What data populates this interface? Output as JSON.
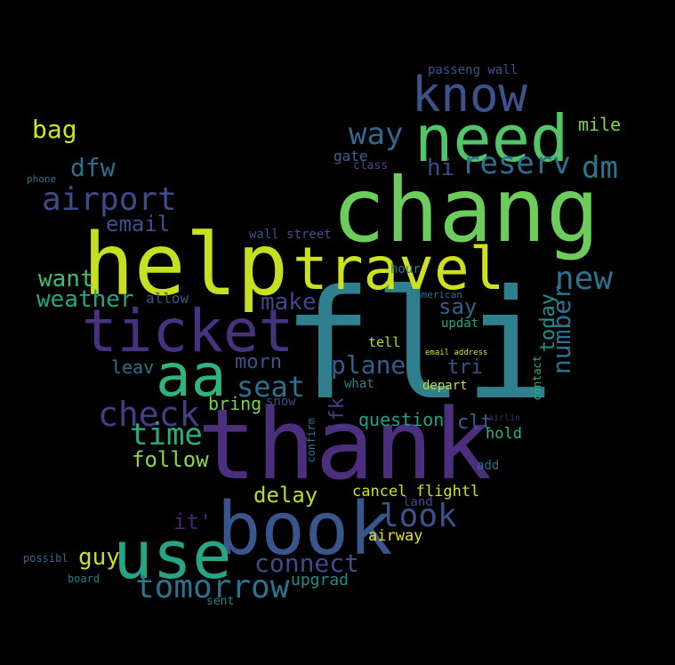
{
  "background_color": "#000000",
  "words": [
    {
      "text": "fli",
      "color": "#2f7f8e"
    },
    {
      "text": "thank",
      "color": "#4b2f7d"
    },
    {
      "text": "chang",
      "color": "#6ccd5a"
    },
    {
      "text": "help",
      "color": "#c6e021"
    },
    {
      "text": "travel",
      "color": "#cde11d"
    },
    {
      "text": "book",
      "color": "#39568c"
    },
    {
      "text": "need",
      "color": "#52c569"
    },
    {
      "text": "ticket",
      "color": "#46327e"
    },
    {
      "text": "use",
      "color": "#25a584"
    },
    {
      "text": "aa",
      "color": "#2fb47c"
    },
    {
      "text": "know",
      "color": "#3b528b"
    },
    {
      "text": "check",
      "color": "#433e85"
    },
    {
      "text": "tomorrow",
      "color": "#2c728e"
    },
    {
      "text": "airport",
      "color": "#3e4a89"
    },
    {
      "text": "time",
      "color": "#29af7f"
    },
    {
      "text": "reserv",
      "color": "#2e6f8e"
    },
    {
      "text": "look",
      "color": "#3b528b"
    },
    {
      "text": "way",
      "color": "#31688e"
    },
    {
      "text": "dm",
      "color": "#2a788e"
    },
    {
      "text": "new",
      "color": "#2c728e"
    },
    {
      "text": "seat",
      "color": "#2d708e"
    },
    {
      "text": "plane",
      "color": "#365c8d"
    },
    {
      "text": "number",
      "color": "#2c728e"
    },
    {
      "text": "connect",
      "color": "#3e4c8a"
    },
    {
      "text": "follow",
      "color": "#8bd646"
    },
    {
      "text": "delay",
      "color": "#b5de2b"
    },
    {
      "text": "dfw",
      "color": "#2d708e"
    },
    {
      "text": "bag",
      "color": "#d2e21b"
    },
    {
      "text": "guy",
      "color": "#c8e020"
    },
    {
      "text": "email",
      "color": "#3b528b"
    },
    {
      "text": "want",
      "color": "#40bd72"
    },
    {
      "text": "weather",
      "color": "#22a785"
    },
    {
      "text": "make",
      "color": "#3f4788"
    },
    {
      "text": "morn",
      "color": "#3b528b"
    },
    {
      "text": "hi",
      "color": "#3e4a89"
    },
    {
      "text": "today",
      "color": "#20928c"
    },
    {
      "text": "say",
      "color": "#355f8d"
    },
    {
      "text": "question",
      "color": "#1fa188"
    },
    {
      "text": "upgrad",
      "color": "#228c8d"
    },
    {
      "text": "cancel flightl",
      "color": "#cde11d"
    },
    {
      "text": "airway",
      "color": "#dde318"
    },
    {
      "text": "it'",
      "color": "#482475"
    },
    {
      "text": "mile",
      "color": "#7fd34e"
    },
    {
      "text": "tri",
      "color": "#3b528b"
    },
    {
      "text": "jfk",
      "color": "#433e85"
    },
    {
      "text": "leav",
      "color": "#2c728e"
    },
    {
      "text": "clt",
      "color": "#355f8d"
    },
    {
      "text": "bring",
      "color": "#7ad151"
    },
    {
      "text": "hold",
      "color": "#2fb47c"
    },
    {
      "text": "depart",
      "color": "#c2df23"
    },
    {
      "text": "tell",
      "color": "#b8de29"
    },
    {
      "text": "gate",
      "color": "#31688e"
    },
    {
      "text": "allow",
      "color": "#3b528b"
    },
    {
      "text": "snow",
      "color": "#404688"
    },
    {
      "text": "passeng wall",
      "color": "#3b528b"
    },
    {
      "text": "wall street",
      "color": "#3b528b"
    },
    {
      "text": "updat",
      "color": "#22a785"
    },
    {
      "text": "hour",
      "color": "#2a788e"
    },
    {
      "text": "contact",
      "color": "#2ab07f"
    },
    {
      "text": "add",
      "color": "#2d708e"
    },
    {
      "text": "land",
      "color": "#3e4a89"
    },
    {
      "text": "board",
      "color": "#2a788e"
    },
    {
      "text": "sent",
      "color": "#26828e"
    },
    {
      "text": "what",
      "color": "#26828e"
    },
    {
      "text": "confirm",
      "color": "#2c728e"
    },
    {
      "text": "class",
      "color": "#3e4a89"
    },
    {
      "text": "phone",
      "color": "#2e6f8e"
    },
    {
      "text": "possibl",
      "color": "#31688e"
    },
    {
      "text": "american",
      "color": "#2c728e"
    },
    {
      "text": "email address",
      "color": "#dde318"
    },
    {
      "text": "airlin",
      "color": "#482878"
    }
  ]
}
